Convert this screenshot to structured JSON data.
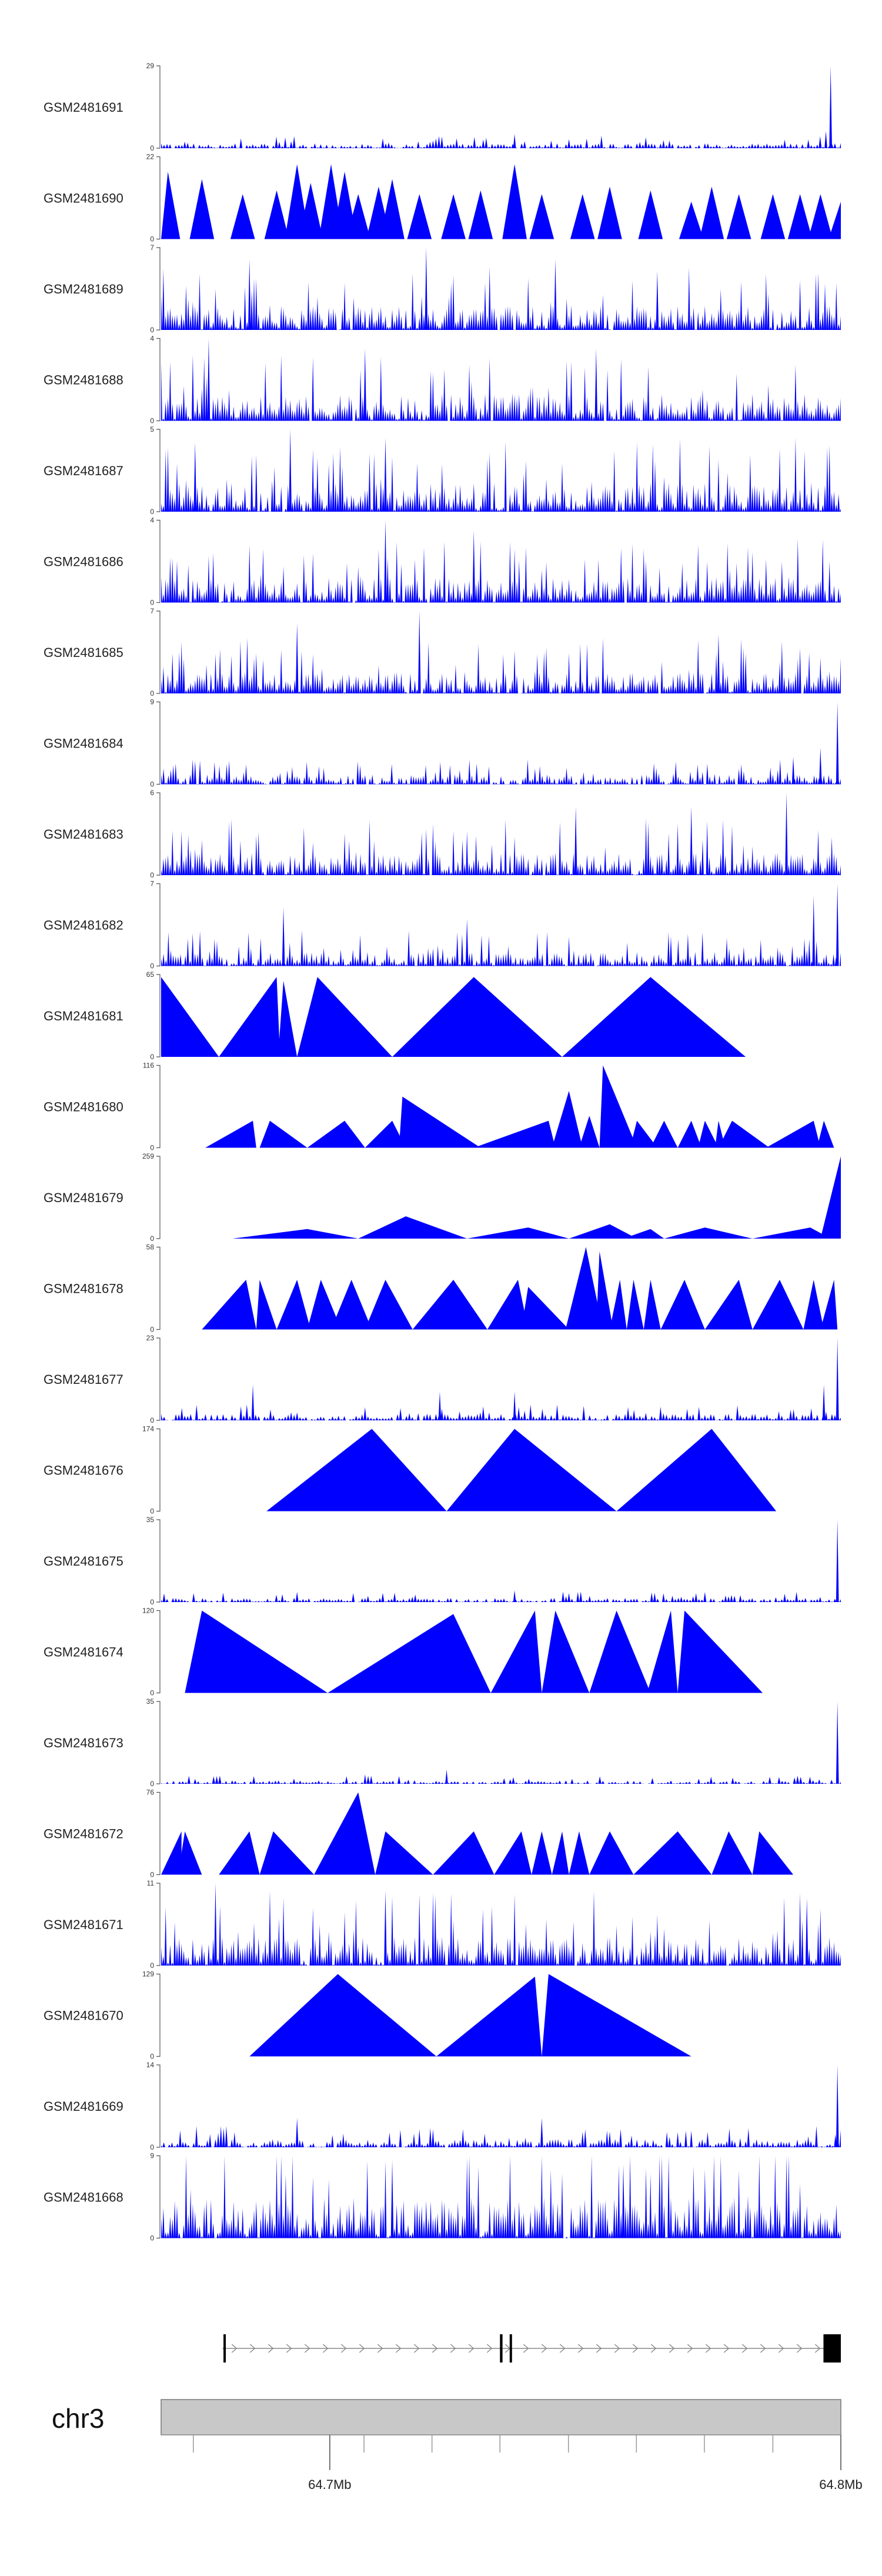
{
  "colors": {
    "signal": "#0000FF",
    "ideogram": "#c8c8c8",
    "ideogram_border": "#777777",
    "gene": "#000000"
  },
  "chart_data": {
    "type": "area",
    "title": "",
    "chromosome": "chr3",
    "genomic_range_mb": [
      64.667,
      64.8
    ],
    "axis_ticks": [
      {
        "pos_mb": 64.7,
        "label": "64.7Mb"
      },
      {
        "pos_mb": 64.8,
        "label": "64.8Mb"
      }
    ],
    "minor_ticks_mb": [
      64.6733,
      64.7067,
      64.72,
      64.7333,
      64.7467,
      64.76,
      64.7733,
      64.7867
    ],
    "gene_model": {
      "start_mb": 64.679,
      "end_mb": 64.8,
      "strand": "+",
      "exons_mb": [
        [
          64.6792,
          64.6796
        ],
        [
          64.7333,
          64.7338
        ],
        [
          64.7352,
          64.7356
        ],
        [
          64.7966,
          64.8
        ]
      ]
    },
    "tracks": [
      {
        "name": "GSM2481691",
        "ymax": 29,
        "style": "noise",
        "density": 230,
        "base": 0.06,
        "spikes": [
          [
            0.985,
            29
          ],
          [
            0.978,
            6
          ],
          [
            0.52,
            5
          ]
        ],
        "start": 0,
        "end": 1
      },
      {
        "name": "GSM2481690",
        "ymax": 22,
        "style": "mixed",
        "peaks": [
          [
            0.01,
            18
          ],
          [
            0.06,
            16
          ],
          [
            0.12,
            12
          ],
          [
            0.17,
            13
          ],
          [
            0.2,
            20
          ],
          [
            0.22,
            15
          ],
          [
            0.25,
            20
          ],
          [
            0.27,
            18
          ],
          [
            0.29,
            12
          ],
          [
            0.32,
            14
          ],
          [
            0.34,
            16
          ],
          [
            0.38,
            12
          ],
          [
            0.43,
            12
          ],
          [
            0.47,
            13
          ],
          [
            0.52,
            20
          ],
          [
            0.56,
            12
          ],
          [
            0.62,
            12
          ],
          [
            0.66,
            14
          ],
          [
            0.72,
            13
          ],
          [
            0.78,
            10
          ],
          [
            0.81,
            14
          ],
          [
            0.85,
            12
          ],
          [
            0.9,
            12
          ],
          [
            0.94,
            12
          ],
          [
            0.97,
            12
          ],
          [
            1.0,
            10
          ]
        ],
        "start": 0,
        "end": 1
      },
      {
        "name": "GSM2481689",
        "ymax": 7,
        "style": "noise",
        "density": 300,
        "base": 0.3,
        "spikes": [
          [
            0.39,
            7
          ],
          [
            0.13,
            6
          ],
          [
            0.58,
            6
          ],
          [
            0.73,
            5
          ]
        ],
        "start": 0,
        "end": 1
      },
      {
        "name": "GSM2481688",
        "ymax": 4,
        "style": "noise",
        "density": 300,
        "base": 0.33,
        "spikes": [
          [
            0.07,
            4
          ],
          [
            0.3,
            3.5
          ],
          [
            0.64,
            3.5
          ]
        ],
        "start": 0,
        "end": 1
      },
      {
        "name": "GSM2481687",
        "ymax": 5,
        "style": "noise",
        "density": 300,
        "base": 0.35,
        "spikes": [
          [
            0.19,
            5
          ],
          [
            0.33,
            4.5
          ],
          [
            0.05,
            4.2
          ]
        ],
        "start": 0,
        "end": 1
      },
      {
        "name": "GSM2481686",
        "ymax": 4,
        "style": "noise",
        "density": 300,
        "base": 0.3,
        "spikes": [
          [
            0.33,
            4
          ],
          [
            0.46,
            3.5
          ]
        ],
        "start": 0,
        "end": 1
      },
      {
        "name": "GSM2481685",
        "ymax": 7,
        "style": "noise",
        "density": 300,
        "base": 0.26,
        "spikes": [
          [
            0.38,
            7
          ],
          [
            0.2,
            6
          ],
          [
            0.82,
            5
          ]
        ],
        "start": 0,
        "end": 1
      },
      {
        "name": "GSM2481684",
        "ymax": 9,
        "style": "noise",
        "density": 280,
        "base": 0.12,
        "spikes": [
          [
            0.995,
            9
          ],
          [
            0.97,
            4
          ],
          [
            0.93,
            3
          ]
        ],
        "start": 0,
        "end": 1
      },
      {
        "name": "GSM2481683",
        "ymax": 6,
        "style": "noise",
        "density": 300,
        "base": 0.27,
        "spikes": [
          [
            0.92,
            6
          ],
          [
            0.61,
            5
          ],
          [
            0.78,
            5
          ]
        ],
        "start": 0,
        "end": 1
      },
      {
        "name": "GSM2481682",
        "ymax": 7,
        "style": "noise",
        "density": 280,
        "base": 0.17,
        "spikes": [
          [
            0.995,
            7
          ],
          [
            0.96,
            6
          ],
          [
            0.18,
            5
          ],
          [
            0.45,
            4
          ]
        ],
        "start": 0,
        "end": 1
      },
      {
        "name": "GSM2481681",
        "ymax": 65,
        "style": "triangles",
        "tris": [
          [
            0,
            0.085,
            0.0,
            63
          ],
          [
            0.085,
            0.175,
            0.17,
            63
          ],
          [
            0.172,
            0.2,
            0.18,
            60
          ],
          [
            0.2,
            0.34,
            0.23,
            63
          ],
          [
            0.34,
            0.59,
            0.46,
            63
          ],
          [
            0.59,
            0.86,
            0.72,
            63
          ]
        ],
        "start": 0,
        "end": 1
      },
      {
        "name": "GSM2481680",
        "ymax": 116,
        "style": "triangles",
        "tris": [
          [
            0.065,
            0.14,
            0.135,
            38
          ],
          [
            0.145,
            0.215,
            0.16,
            38
          ],
          [
            0.215,
            0.3,
            0.27,
            38
          ],
          [
            0.3,
            0.36,
            0.34,
            38
          ],
          [
            0.35,
            0.47,
            0.355,
            72
          ],
          [
            0.46,
            0.58,
            0.57,
            38
          ],
          [
            0.575,
            0.62,
            0.6,
            80
          ],
          [
            0.615,
            0.645,
            0.63,
            45
          ],
          [
            0.645,
            0.7,
            0.65,
            116
          ],
          [
            0.66,
            0.69,
            0.67,
            60
          ],
          [
            0.69,
            0.73,
            0.7,
            38
          ],
          [
            0.72,
            0.76,
            0.74,
            38
          ],
          [
            0.76,
            0.795,
            0.78,
            38
          ],
          [
            0.79,
            0.82,
            0.8,
            38
          ],
          [
            0.815,
            0.83,
            0.82,
            38
          ],
          [
            0.82,
            0.895,
            0.84,
            38
          ],
          [
            0.89,
            0.97,
            0.96,
            38
          ],
          [
            0.965,
            0.99,
            0.975,
            38
          ]
        ],
        "start": 0,
        "end": 1
      },
      {
        "name": "GSM2481679",
        "ymax": 259,
        "style": "triangles",
        "tris": [
          [
            0.105,
            0.29,
            0.215,
            30
          ],
          [
            0.29,
            0.45,
            0.36,
            70
          ],
          [
            0.45,
            0.6,
            0.54,
            35
          ],
          [
            0.6,
            0.7,
            0.66,
            45
          ],
          [
            0.66,
            0.68,
            0.67,
            30
          ],
          [
            0.68,
            0.74,
            0.72,
            30
          ],
          [
            0.74,
            0.87,
            0.8,
            35
          ],
          [
            0.87,
            0.985,
            0.955,
            35
          ],
          [
            0.97,
            1.0,
            1.0,
            259
          ]
        ],
        "start": 0,
        "end": 1
      },
      {
        "name": "GSM2481678",
        "ymax": 58,
        "style": "triangles",
        "tris": [
          [
            0.06,
            0.14,
            0.125,
            35
          ],
          [
            0.14,
            0.17,
            0.145,
            35
          ],
          [
            0.17,
            0.22,
            0.2,
            35
          ],
          [
            0.215,
            0.265,
            0.235,
            35
          ],
          [
            0.25,
            0.31,
            0.28,
            35
          ],
          [
            0.3,
            0.37,
            0.33,
            35
          ],
          [
            0.37,
            0.48,
            0.43,
            35
          ],
          [
            0.48,
            0.54,
            0.525,
            35
          ],
          [
            0.53,
            0.6,
            0.54,
            30
          ],
          [
            0.595,
            0.65,
            0.625,
            58
          ],
          [
            0.64,
            0.665,
            0.645,
            55
          ],
          [
            0.66,
            0.685,
            0.675,
            35
          ],
          [
            0.685,
            0.71,
            0.695,
            35
          ],
          [
            0.71,
            0.735,
            0.72,
            35
          ],
          [
            0.735,
            0.8,
            0.77,
            35
          ],
          [
            0.8,
            0.87,
            0.85,
            35
          ],
          [
            0.87,
            0.945,
            0.91,
            35
          ],
          [
            0.945,
            0.975,
            0.96,
            35
          ],
          [
            0.97,
            0.995,
            0.99,
            35
          ]
        ],
        "start": 0,
        "end": 1
      },
      {
        "name": "GSM2481677",
        "ymax": 23,
        "style": "noise",
        "density": 230,
        "base": 0.08,
        "spikes": [
          [
            0.995,
            23
          ],
          [
            0.975,
            10
          ],
          [
            0.135,
            10
          ],
          [
            0.52,
            8
          ],
          [
            0.41,
            8
          ]
        ],
        "start": 0,
        "end": 1
      },
      {
        "name": "GSM2481676",
        "ymax": 174,
        "style": "triangles",
        "tris": [
          [
            0.155,
            0.42,
            0.31,
            174
          ],
          [
            0.42,
            0.67,
            0.52,
            174
          ],
          [
            0.67,
            0.905,
            0.81,
            174
          ]
        ],
        "start": 0,
        "end": 1
      },
      {
        "name": "GSM2481675",
        "ymax": 35,
        "style": "noise",
        "density": 230,
        "base": 0.05,
        "spikes": [
          [
            0.995,
            35
          ],
          [
            0.52,
            5
          ]
        ],
        "start": 0,
        "end": 1
      },
      {
        "name": "GSM2481674",
        "ymax": 120,
        "style": "triangles",
        "tris": [
          [
            0.035,
            0.245,
            0.06,
            120
          ],
          [
            0.245,
            0.485,
            0.43,
            115
          ],
          [
            0.42,
            0.44,
            0.43,
            60
          ],
          [
            0.485,
            0.56,
            0.55,
            120
          ],
          [
            0.56,
            0.63,
            0.58,
            120
          ],
          [
            0.63,
            0.72,
            0.67,
            120
          ],
          [
            0.715,
            0.76,
            0.75,
            120
          ],
          [
            0.76,
            0.885,
            0.77,
            120
          ]
        ],
        "start": 0,
        "end": 1
      },
      {
        "name": "GSM2481673",
        "ymax": 35,
        "style": "noise",
        "density": 220,
        "base": 0.04,
        "spikes": [
          [
            0.995,
            35
          ],
          [
            0.42,
            6
          ],
          [
            0.3,
            4
          ]
        ],
        "start": 0,
        "end": 1
      },
      {
        "name": "GSM2481672",
        "ymax": 76,
        "style": "triangles",
        "tris": [
          [
            0.0,
            0.03,
            0.03,
            40
          ],
          [
            0.025,
            0.06,
            0.035,
            40
          ],
          [
            0.085,
            0.145,
            0.13,
            40
          ],
          [
            0.145,
            0.225,
            0.165,
            40
          ],
          [
            0.225,
            0.315,
            0.29,
            76
          ],
          [
            0.315,
            0.4,
            0.33,
            40
          ],
          [
            0.4,
            0.49,
            0.46,
            40
          ],
          [
            0.49,
            0.545,
            0.53,
            40
          ],
          [
            0.545,
            0.575,
            0.56,
            40
          ],
          [
            0.575,
            0.6,
            0.59,
            40
          ],
          [
            0.6,
            0.63,
            0.615,
            40
          ],
          [
            0.63,
            0.695,
            0.66,
            40
          ],
          [
            0.695,
            0.81,
            0.76,
            40
          ],
          [
            0.81,
            0.87,
            0.835,
            40
          ],
          [
            0.87,
            0.93,
            0.88,
            40
          ]
        ],
        "start": 0,
        "end": 1
      },
      {
        "name": "GSM2481671",
        "ymax": 11,
        "style": "noise",
        "density": 300,
        "base": 0.35,
        "spikes": [
          [
            0.08,
            11
          ],
          [
            0.33,
            10
          ],
          [
            0.95,
            9
          ]
        ],
        "start": 0,
        "end": 1
      },
      {
        "name": "GSM2481670",
        "ymax": 129,
        "style": "triangles",
        "tris": [
          [
            0.13,
            0.405,
            0.26,
            129
          ],
          [
            0.405,
            0.56,
            0.55,
            125
          ],
          [
            0.56,
            0.78,
            0.57,
            129
          ]
        ],
        "start": 0,
        "end": 1
      },
      {
        "name": "GSM2481669",
        "ymax": 14,
        "style": "noise",
        "density": 250,
        "base": 0.1,
        "spikes": [
          [
            0.995,
            14
          ],
          [
            0.2,
            5
          ],
          [
            0.56,
            5
          ]
        ],
        "start": 0,
        "end": 1
      },
      {
        "name": "GSM2481668",
        "ymax": 9,
        "style": "noise",
        "density": 300,
        "base": 0.5,
        "spikes": [
          [
            0.34,
            8.5
          ],
          [
            0.68,
            8
          ]
        ],
        "start": 0,
        "end": 1
      }
    ]
  }
}
